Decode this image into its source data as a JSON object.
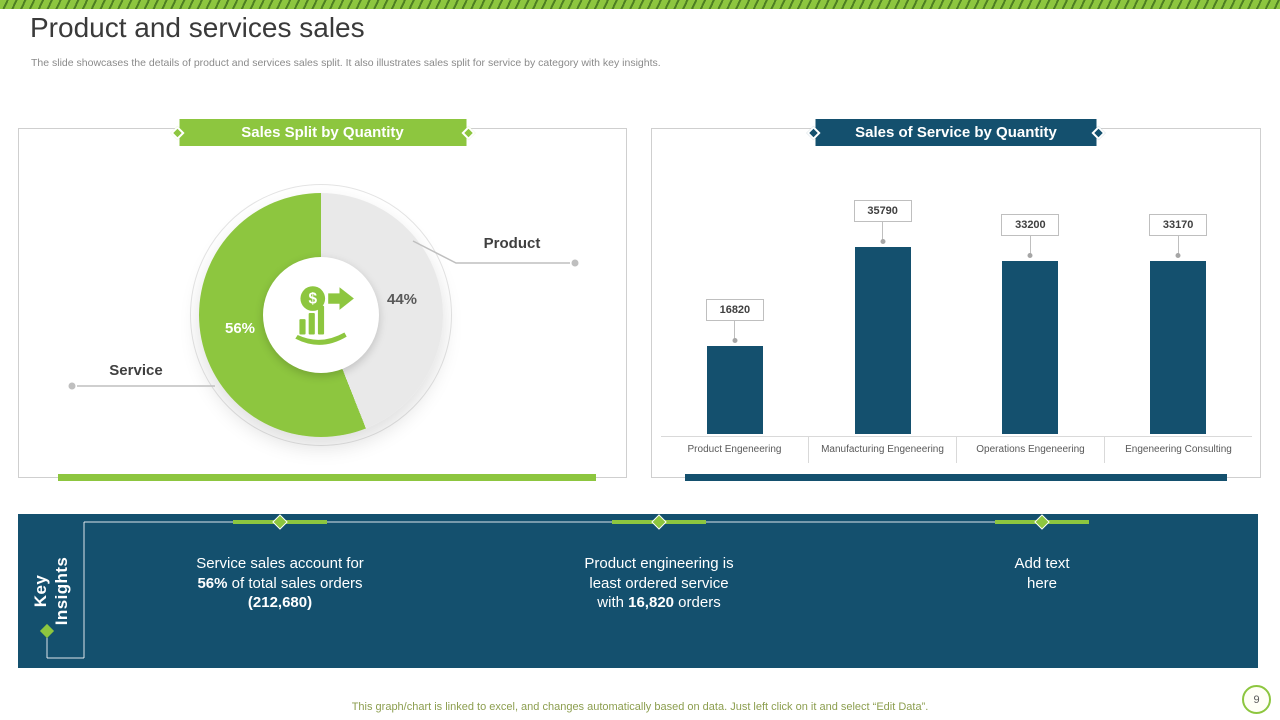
{
  "slide": {
    "title": "Product and services sales",
    "subtitle": "The slide showcases the details of product and services sales split. It also illustrates sales split for service by category with key insights.",
    "footer": "This graph/chart is linked to excel, and changes automatically based on data. Just left click on it and select “Edit Data”.",
    "page_number": "9"
  },
  "colors": {
    "green": "#8DC63F",
    "blue": "#14506E",
    "slice_gray": "#E9E9E9"
  },
  "icons": {
    "dollar": "$"
  },
  "chart_data": [
    {
      "type": "pie",
      "title": "Sales Split by Quantity",
      "slices": [
        {
          "label": "Service",
          "value": 56,
          "display": "56%",
          "color": "#8DC63F"
        },
        {
          "label": "Product",
          "value": 44,
          "display": "44%",
          "color": "#E9E9E9"
        }
      ],
      "legend_position": "callouts"
    },
    {
      "type": "bar",
      "title": "Sales of Service by Quantity",
      "categories": [
        "Product Engeneering",
        "Manufacturing Engeneering",
        "Operations Engeneering",
        "Engeneering Consulting"
      ],
      "values": [
        16820,
        35790,
        33200,
        33170
      ],
      "bar_color": "#14506E",
      "ylim": [
        0,
        35790
      ],
      "grid": false
    }
  ],
  "insights": {
    "heading": "Key\nInsights",
    "items": [
      {
        "t1": "Service sales account for ",
        "b1": "56%",
        "t2": " of total sales orders ",
        "b2": "(212,680)"
      },
      {
        "t1": "Product engineering is least ordered service with ",
        "b1": "16,820",
        "t2": " orders"
      },
      {
        "t1": "Add text here"
      }
    ]
  }
}
